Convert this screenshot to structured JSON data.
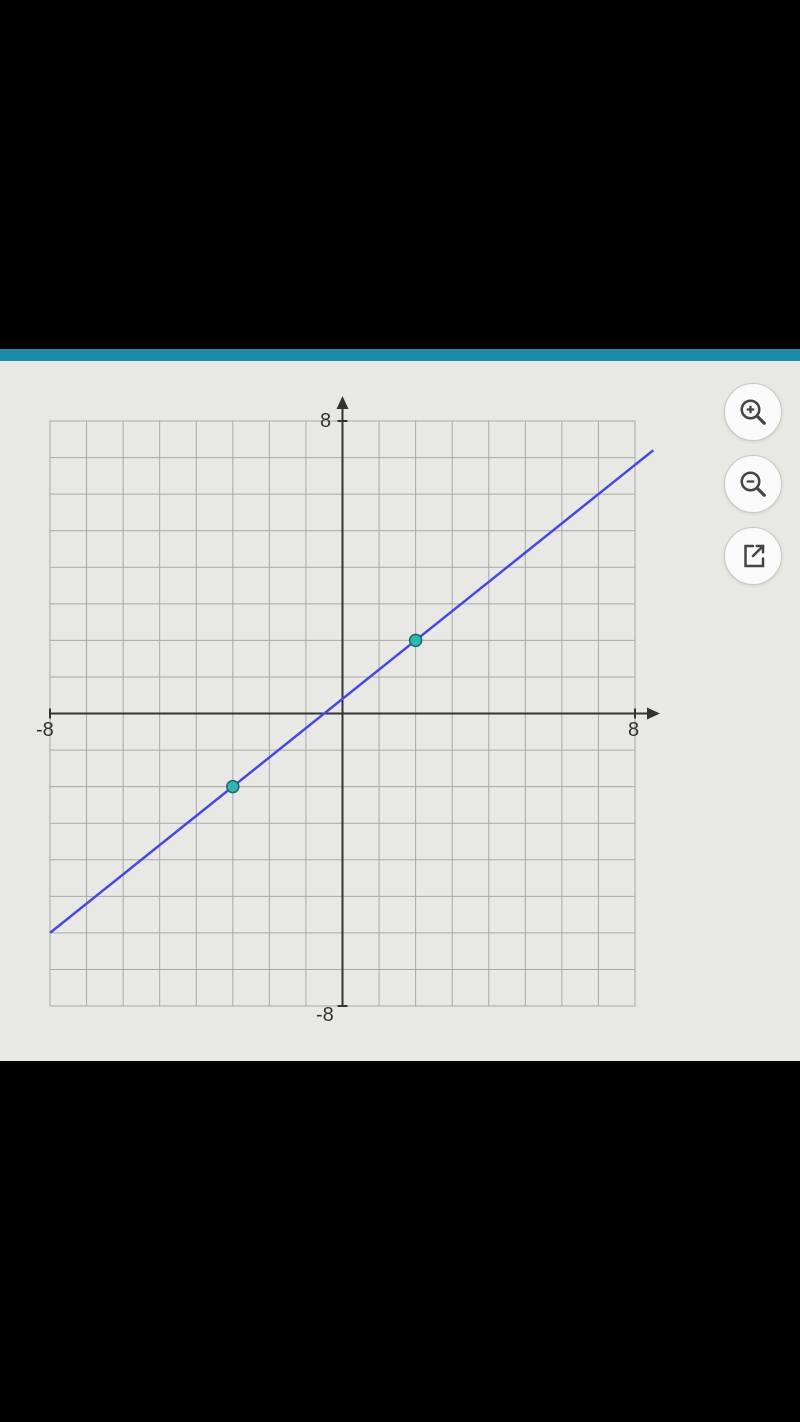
{
  "chart": {
    "type": "line",
    "background_color": "#e8e8e5",
    "grid_color": "#a8a8a8",
    "axis_color": "#333333",
    "line_color": "#4848e8",
    "line_width": 2.5,
    "point_fill": "#30b8b0",
    "point_stroke": "#1a6868",
    "point_radius": 6,
    "xlim": [
      -8,
      8
    ],
    "ylim": [
      -8,
      8
    ],
    "tick_step": 1,
    "labeled_ticks": [
      8,
      -8
    ],
    "points": [
      {
        "x": -3,
        "y": -2
      },
      {
        "x": 2,
        "y": 2
      }
    ],
    "line_extent": [
      {
        "x": -8,
        "y": -6
      },
      {
        "x": 8.5,
        "y": 7.2
      }
    ],
    "label_fontsize": 20,
    "label_color": "#333333"
  },
  "toolbar": {
    "zoom_in_label": "Zoom In",
    "zoom_out_label": "Zoom Out",
    "share_label": "Open"
  },
  "axis_labels": {
    "y_pos": "8",
    "y_neg": "-8",
    "x_pos": "8",
    "x_neg": "-8"
  }
}
